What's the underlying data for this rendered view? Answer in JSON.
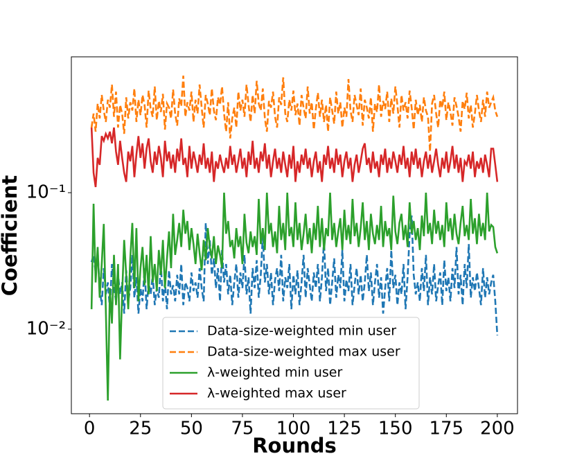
{
  "chart_data": {
    "type": "line",
    "x_label": "Rounds",
    "y_label": "Coefficient",
    "yscale": "log",
    "legend": "lower center",
    "xlim": [
      -8.9,
      209.9
    ],
    "ylim": [
      0.0024,
      0.99
    ],
    "xticks": [
      0,
      25,
      50,
      75,
      100,
      125,
      150,
      175,
      200
    ],
    "yticks": [
      {
        "value": 0.01,
        "label": "10⁻²"
      },
      {
        "value": 0.1,
        "label": "10⁻¹"
      }
    ],
    "x": [
      1,
      2,
      3,
      4,
      5,
      6,
      7,
      8,
      9,
      10,
      11,
      12,
      13,
      14,
      15,
      16,
      17,
      18,
      19,
      20,
      21,
      22,
      23,
      24,
      25,
      26,
      27,
      28,
      29,
      30,
      31,
      32,
      33,
      34,
      35,
      36,
      37,
      38,
      39,
      40,
      41,
      42,
      43,
      44,
      45,
      46,
      47,
      48,
      49,
      50,
      51,
      52,
      53,
      54,
      55,
      56,
      57,
      58,
      59,
      60,
      61,
      62,
      63,
      64,
      65,
      66,
      67,
      68,
      69,
      70,
      71,
      72,
      73,
      74,
      75,
      76,
      77,
      78,
      79,
      80,
      81,
      82,
      83,
      84,
      85,
      86,
      87,
      88,
      89,
      90,
      91,
      92,
      93,
      94,
      95,
      96,
      97,
      98,
      99,
      100,
      101,
      102,
      103,
      104,
      105,
      106,
      107,
      108,
      109,
      110,
      111,
      112,
      113,
      114,
      115,
      116,
      117,
      118,
      119,
      120,
      121,
      122,
      123,
      124,
      125,
      126,
      127,
      128,
      129,
      130,
      131,
      132,
      133,
      134,
      135,
      136,
      137,
      138,
      139,
      140,
      141,
      142,
      143,
      144,
      145,
      146,
      147,
      148,
      149,
      150,
      151,
      152,
      153,
      154,
      155,
      156,
      157,
      158,
      159,
      160,
      161,
      162,
      163,
      164,
      165,
      166,
      167,
      168,
      169,
      170,
      171,
      172,
      173,
      174,
      175,
      176,
      177,
      178,
      179,
      180,
      181,
      182,
      183,
      184,
      185,
      186,
      187,
      188,
      189,
      190,
      191,
      192,
      193,
      194,
      195,
      196,
      197,
      198,
      199,
      200
    ],
    "series": [
      {
        "name": "Data-size-weighted min user",
        "color": "#1f77b4",
        "linestyle": "dashed",
        "values": [
          0.031,
          0.035,
          0.026,
          0.037,
          0.02,
          0.015,
          0.028,
          0.018,
          0.022,
          0.014,
          0.03,
          0.02,
          0.016,
          0.025,
          0.018,
          0.022,
          0.013,
          0.027,
          0.016,
          0.02,
          0.035,
          0.017,
          0.024,
          0.013,
          0.02,
          0.016,
          0.028,
          0.014,
          0.022,
          0.018,
          0.025,
          0.015,
          0.02,
          0.017,
          0.03,
          0.016,
          0.022,
          0.014,
          0.027,
          0.018,
          0.021,
          0.016,
          0.025,
          0.018,
          0.03,
          0.015,
          0.022,
          0.02,
          0.016,
          0.026,
          0.019,
          0.022,
          0.017,
          0.028,
          0.02,
          0.016,
          0.06,
          0.03,
          0.045,
          0.025,
          0.033,
          0.02,
          0.028,
          0.016,
          0.038,
          0.022,
          0.03,
          0.018,
          0.025,
          0.015,
          0.022,
          0.03,
          0.017,
          0.026,
          0.02,
          0.035,
          0.018,
          0.024,
          0.013,
          0.028,
          0.02,
          0.032,
          0.017,
          0.025,
          0.05,
          0.022,
          0.03,
          0.018,
          0.026,
          0.015,
          0.023,
          0.028,
          0.019,
          0.035,
          0.016,
          0.024,
          0.02,
          0.03,
          0.014,
          0.025,
          0.018,
          0.027,
          0.015,
          0.022,
          0.035,
          0.017,
          0.028,
          0.021,
          0.016,
          0.026,
          0.02,
          0.03,
          0.016,
          0.024,
          0.045,
          0.019,
          0.028,
          0.015,
          0.022,
          0.033,
          0.017,
          0.025,
          0.02,
          0.038,
          0.016,
          0.023,
          0.019,
          0.03,
          0.015,
          0.021,
          0.028,
          0.018,
          0.025,
          0.016,
          0.022,
          0.035,
          0.019,
          0.026,
          0.015,
          0.022,
          0.03,
          0.017,
          0.024,
          0.013,
          0.02,
          0.028,
          0.016,
          0.038,
          0.02,
          0.025,
          0.015,
          0.022,
          0.018,
          0.03,
          0.014,
          0.024,
          0.05,
          0.068,
          0.025,
          0.018,
          0.022,
          0.016,
          0.028,
          0.019,
          0.035,
          0.015,
          0.024,
          0.018,
          0.03,
          0.016,
          0.021,
          0.026,
          0.015,
          0.032,
          0.019,
          0.024,
          0.016,
          0.028,
          0.02,
          0.04,
          0.018,
          0.025,
          0.015,
          0.03,
          0.02,
          0.042,
          0.017,
          0.024,
          0.019,
          0.026,
          0.02,
          0.015,
          0.028,
          0.017,
          0.024,
          0.018,
          0.022,
          0.025,
          0.016,
          0.009
        ]
      },
      {
        "name": "Data-size-weighted max user",
        "color": "#ff7f0e",
        "linestyle": "dashed",
        "values": [
          0.3,
          0.38,
          0.28,
          0.45,
          0.35,
          0.52,
          0.4,
          0.33,
          0.48,
          0.42,
          0.62,
          0.36,
          0.55,
          0.3,
          0.44,
          0.38,
          0.27,
          0.5,
          0.35,
          0.46,
          0.4,
          0.58,
          0.33,
          0.48,
          0.37,
          0.52,
          0.44,
          0.3,
          0.56,
          0.41,
          0.36,
          0.6,
          0.34,
          0.47,
          0.39,
          0.53,
          0.29,
          0.45,
          0.42,
          0.35,
          0.57,
          0.38,
          0.31,
          0.49,
          0.43,
          0.72,
          0.36,
          0.46,
          0.4,
          0.55,
          0.33,
          0.48,
          0.38,
          0.62,
          0.42,
          0.3,
          0.52,
          0.45,
          0.37,
          0.58,
          0.4,
          0.34,
          0.5,
          0.44,
          0.6,
          0.38,
          0.28,
          0.46,
          0.25,
          0.35,
          0.42,
          0.3,
          0.55,
          0.4,
          0.48,
          0.36,
          0.62,
          0.44,
          0.33,
          0.52,
          0.38,
          0.66,
          0.45,
          0.4,
          0.58,
          0.35,
          0.28,
          0.47,
          0.42,
          0.55,
          0.36,
          0.3,
          0.5,
          0.44,
          0.7,
          0.38,
          0.33,
          0.48,
          0.4,
          0.56,
          0.37,
          0.45,
          0.31,
          0.52,
          0.42,
          0.35,
          0.6,
          0.38,
          0.46,
          0.29,
          0.41,
          0.54,
          0.36,
          0.48,
          0.33,
          0.44,
          0.28,
          0.5,
          0.4,
          0.32,
          0.55,
          0.38,
          0.46,
          0.3,
          0.42,
          0.36,
          0.68,
          0.4,
          0.33,
          0.52,
          0.44,
          0.37,
          0.58,
          0.31,
          0.48,
          0.42,
          0.35,
          0.5,
          0.28,
          0.45,
          0.39,
          0.62,
          0.36,
          0.47,
          0.41,
          0.55,
          0.33,
          0.49,
          0.38,
          0.6,
          0.44,
          0.3,
          0.52,
          0.4,
          0.46,
          0.35,
          0.56,
          0.42,
          0.29,
          0.48,
          0.37,
          0.44,
          0.33,
          0.5,
          0.4,
          0.36,
          0.2,
          0.45,
          0.52,
          0.38,
          0.3,
          0.48,
          0.42,
          0.55,
          0.34,
          0.46,
          0.39,
          0.31,
          0.5,
          0.43,
          0.36,
          0.28,
          0.47,
          0.41,
          0.54,
          0.35,
          0.44,
          0.3,
          0.38,
          0.52,
          0.4,
          0.33,
          0.48,
          0.36,
          0.55,
          0.42,
          0.46,
          0.5,
          0.4,
          0.36
        ]
      },
      {
        "name": "λ-weighted min user",
        "color": "#2ca02c",
        "linestyle": "solid",
        "values": [
          0.014,
          0.083,
          0.022,
          0.04,
          0.017,
          0.03,
          0.059,
          0.014,
          0.003,
          0.02,
          0.011,
          0.035,
          0.015,
          0.03,
          0.006,
          0.018,
          0.045,
          0.025,
          0.014,
          0.033,
          0.06,
          0.02,
          0.055,
          0.016,
          0.028,
          0.04,
          0.021,
          0.035,
          0.018,
          0.048,
          0.022,
          0.03,
          0.019,
          0.038,
          0.025,
          0.045,
          0.02,
          0.033,
          0.052,
          0.028,
          0.07,
          0.035,
          0.045,
          0.06,
          0.04,
          0.075,
          0.05,
          0.062,
          0.038,
          0.055,
          0.042,
          0.03,
          0.05,
          0.036,
          0.027,
          0.045,
          0.032,
          0.055,
          0.04,
          0.033,
          0.048,
          0.03,
          0.041,
          0.035,
          0.028,
          0.1,
          0.05,
          0.062,
          0.04,
          0.045,
          0.033,
          0.055,
          0.04,
          0.048,
          0.03,
          0.07,
          0.043,
          0.036,
          0.052,
          0.04,
          0.048,
          0.035,
          0.09,
          0.042,
          0.055,
          0.038,
          0.1,
          0.05,
          0.06,
          0.04,
          0.052,
          0.036,
          0.08,
          0.045,
          0.06,
          0.038,
          0.1,
          0.048,
          0.056,
          0.04,
          0.085,
          0.045,
          0.06,
          0.038,
          0.05,
          0.07,
          0.042,
          0.055,
          0.036,
          0.06,
          0.045,
          0.08,
          0.04,
          0.065,
          0.038,
          0.055,
          0.048,
          0.1,
          0.045,
          0.06,
          0.04,
          0.052,
          0.065,
          0.038,
          0.075,
          0.045,
          0.058,
          0.042,
          0.09,
          0.048,
          0.06,
          0.04,
          0.055,
          0.085,
          0.045,
          0.062,
          0.038,
          0.07,
          0.05,
          0.042,
          0.058,
          0.045,
          0.08,
          0.04,
          0.062,
          0.048,
          0.055,
          0.038,
          0.095,
          0.052,
          0.042,
          0.06,
          0.07,
          0.045,
          0.058,
          0.04,
          0.085,
          0.05,
          0.062,
          0.045,
          0.055,
          0.038,
          0.068,
          0.048,
          0.1,
          0.05,
          0.06,
          0.042,
          0.075,
          0.05,
          0.062,
          0.045,
          0.058,
          0.04,
          0.085,
          0.052,
          0.065,
          0.045,
          0.07,
          0.05,
          0.042,
          0.06,
          0.08,
          0.048,
          0.058,
          0.045,
          0.09,
          0.05,
          0.065,
          0.042,
          0.07,
          0.048,
          0.06,
          0.045,
          0.1,
          0.052,
          0.058,
          0.056,
          0.04,
          0.036
        ]
      },
      {
        "name": "λ-weighted max user",
        "color": "#d62728",
        "linestyle": "solid",
        "values": [
          0.3,
          0.14,
          0.11,
          0.18,
          0.16,
          0.26,
          0.24,
          0.27,
          0.25,
          0.28,
          0.23,
          0.3,
          0.2,
          0.16,
          0.24,
          0.18,
          0.14,
          0.12,
          0.2,
          0.17,
          0.22,
          0.13,
          0.19,
          0.26,
          0.18,
          0.23,
          0.15,
          0.21,
          0.25,
          0.17,
          0.14,
          0.2,
          0.16,
          0.22,
          0.18,
          0.13,
          0.24,
          0.17,
          0.2,
          0.15,
          0.19,
          0.14,
          0.21,
          0.17,
          0.25,
          0.16,
          0.18,
          0.13,
          0.22,
          0.15,
          0.2,
          0.17,
          0.14,
          0.19,
          0.16,
          0.23,
          0.15,
          0.18,
          0.14,
          0.2,
          0.12,
          0.17,
          0.15,
          0.19,
          0.16,
          0.14,
          0.18,
          0.15,
          0.22,
          0.16,
          0.19,
          0.14,
          0.17,
          0.21,
          0.15,
          0.18,
          0.13,
          0.2,
          0.16,
          0.24,
          0.15,
          0.18,
          0.14,
          0.2,
          0.17,
          0.23,
          0.15,
          0.19,
          0.13,
          0.17,
          0.21,
          0.15,
          0.18,
          0.14,
          0.2,
          0.16,
          0.13,
          0.19,
          0.15,
          0.22,
          0.12,
          0.17,
          0.14,
          0.19,
          0.16,
          0.21,
          0.15,
          0.18,
          0.13,
          0.17,
          0.2,
          0.14,
          0.17,
          0.12,
          0.19,
          0.16,
          0.22,
          0.15,
          0.18,
          0.14,
          0.21,
          0.16,
          0.19,
          0.13,
          0.17,
          0.2,
          0.15,
          0.18,
          0.12,
          0.16,
          0.19,
          0.14,
          0.17,
          0.21,
          0.23,
          0.16,
          0.18,
          0.14,
          0.2,
          0.15,
          0.17,
          0.13,
          0.19,
          0.16,
          0.21,
          0.14,
          0.18,
          0.15,
          0.2,
          0.17,
          0.14,
          0.19,
          0.16,
          0.22,
          0.15,
          0.18,
          0.13,
          0.2,
          0.16,
          0.21,
          0.15,
          0.18,
          0.13,
          0.17,
          0.2,
          0.15,
          0.19,
          0.14,
          0.17,
          0.21,
          0.16,
          0.13,
          0.18,
          0.15,
          0.2,
          0.14,
          0.17,
          0.22,
          0.15,
          0.19,
          0.14,
          0.18,
          0.12,
          0.17,
          0.16,
          0.19,
          0.15,
          0.2,
          0.13,
          0.17,
          0.15,
          0.18,
          0.14,
          0.19,
          0.16,
          0.13,
          0.21,
          0.21,
          0.16,
          0.12
        ]
      }
    ]
  }
}
